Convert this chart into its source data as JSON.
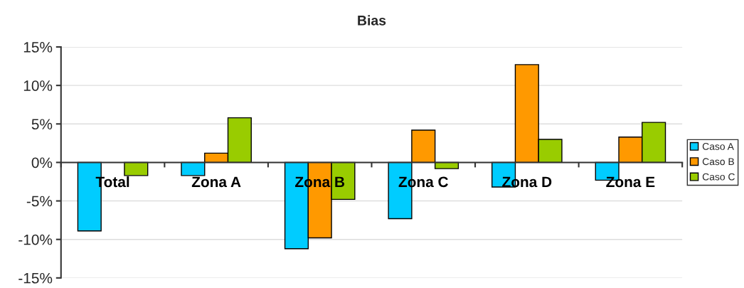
{
  "chart_data": {
    "type": "bar",
    "title": "Bias",
    "categories": [
      "Total",
      "Zona A",
      "Zona B",
      "Zona C",
      "Zona D",
      "Zona E"
    ],
    "series": [
      {
        "name": "Caso A",
        "color": "#00ccff",
        "values": [
          -8.9,
          -1.7,
          -11.2,
          -7.3,
          -3.2,
          -2.3
        ]
      },
      {
        "name": "Caso B",
        "color": "#ff9900",
        "values": [
          null,
          1.2,
          -9.8,
          4.2,
          12.7,
          3.3
        ]
      },
      {
        "name": "Caso C",
        "color": "#99cc00",
        "values": [
          -1.7,
          5.8,
          -4.8,
          -0.8,
          3.0,
          5.2
        ]
      }
    ],
    "ylim": [
      -15,
      15
    ],
    "yticks": [
      {
        "value": -15,
        "label": "-15%"
      },
      {
        "value": -10,
        "label": "-10%"
      },
      {
        "value": -5,
        "label": "-5%"
      },
      {
        "value": 0,
        "label": "0%"
      },
      {
        "value": 5,
        "label": "5%"
      },
      {
        "value": 10,
        "label": "10%"
      },
      {
        "value": 15,
        "label": "15%"
      }
    ],
    "grid": "y",
    "legend": "right"
  }
}
